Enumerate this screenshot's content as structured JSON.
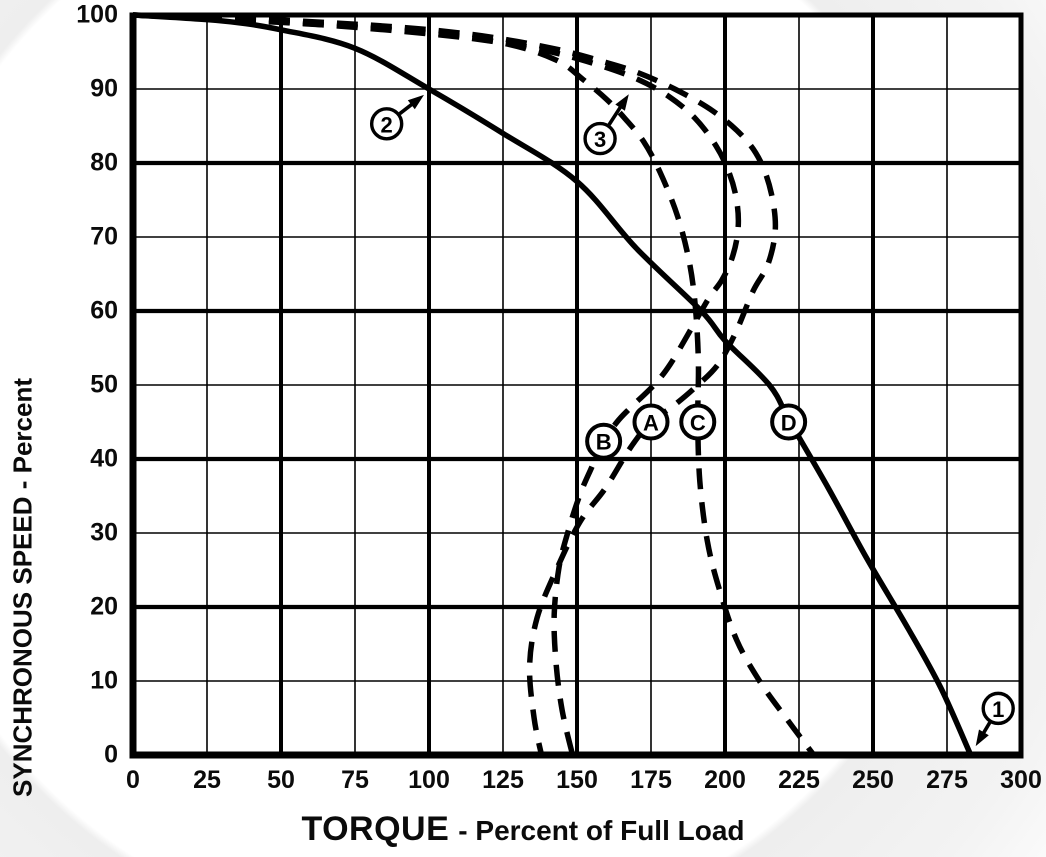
{
  "page": {
    "background_color": "#ffffff",
    "watermark_color": "#eeeeee"
  },
  "chart_data": {
    "type": "line",
    "title": "",
    "xlabel": "TORQUE - Percent of Full Load",
    "xlabel_primary": "TORQUE",
    "xlabel_secondary": "- Percent of Full Load",
    "ylabel": "SYNCHRONOUS SPEED - Percent",
    "xlim": [
      0,
      300
    ],
    "ylim": [
      0,
      100
    ],
    "x_ticks": [
      0,
      25,
      50,
      75,
      100,
      125,
      150,
      175,
      200,
      225,
      250,
      275,
      300
    ],
    "y_ticks": [
      0,
      10,
      20,
      30,
      40,
      50,
      60,
      70,
      80,
      90,
      100
    ],
    "x_major_step": 50,
    "y_major_step": 20,
    "grid": true,
    "legend_position": "none",
    "line_color": "#000000",
    "dash_pattern": [
      21,
      13
    ],
    "series": [
      {
        "name": "A",
        "style": "dashed",
        "label": {
          "text": "A",
          "x": 175,
          "y": 45
        },
        "points": [
          [
            0,
            100
          ],
          [
            45,
            99.4
          ],
          [
            85,
            98.5
          ],
          [
            112,
            97.5
          ],
          [
            130,
            96.4
          ],
          [
            145,
            95.2
          ],
          [
            158,
            93.8
          ],
          [
            170,
            92.3
          ],
          [
            183,
            90
          ],
          [
            196,
            87
          ],
          [
            206,
            83.6
          ],
          [
            212,
            80.2
          ],
          [
            215.7,
            75.8
          ],
          [
            217,
            71
          ],
          [
            214.5,
            66.3
          ],
          [
            209.5,
            62.7
          ],
          [
            203.5,
            57
          ],
          [
            197.5,
            52.7
          ],
          [
            190,
            49.7
          ],
          [
            182,
            47
          ],
          [
            175,
            45
          ],
          [
            168,
            41.5
          ],
          [
            159.5,
            36
          ],
          [
            151,
            31.5
          ],
          [
            143,
            25
          ],
          [
            136.5,
            18.5
          ],
          [
            134,
            12
          ],
          [
            135.5,
            5
          ],
          [
            138,
            0
          ]
        ]
      },
      {
        "name": "B",
        "style": "dashed",
        "label": {
          "text": "B",
          "x": 159,
          "y": 42.4
        },
        "points": [
          [
            0,
            100
          ],
          [
            45,
            99.2
          ],
          [
            85,
            98
          ],
          [
            115,
            96.8
          ],
          [
            138,
            95.3
          ],
          [
            156,
            93.4
          ],
          [
            170,
            91.4
          ],
          [
            181,
            89
          ],
          [
            190,
            86
          ],
          [
            197,
            82.3
          ],
          [
            201.5,
            78.6
          ],
          [
            204,
            74.8
          ],
          [
            204.4,
            71
          ],
          [
            202.5,
            67.3
          ],
          [
            199,
            64.2
          ],
          [
            194.5,
            61.7
          ],
          [
            188,
            57.2
          ],
          [
            181.5,
            52.8
          ],
          [
            176,
            50
          ],
          [
            168,
            46.9
          ],
          [
            163.5,
            45
          ],
          [
            159,
            42.4
          ],
          [
            155,
            38.9
          ],
          [
            151,
            35.2
          ],
          [
            147.2,
            30.5
          ],
          [
            144,
            25.5
          ],
          [
            142.3,
            19
          ],
          [
            142.9,
            12.5
          ],
          [
            145,
            6
          ],
          [
            148.5,
            0
          ]
        ]
      },
      {
        "name": "C",
        "style": "dashed",
        "label": {
          "text": "C",
          "x": 190.8,
          "y": 45
        },
        "points": [
          [
            0,
            100
          ],
          [
            50,
            99
          ],
          [
            95,
            97.8
          ],
          [
            125,
            96.2
          ],
          [
            143,
            93.9
          ],
          [
            152,
            91.3
          ],
          [
            160,
            88.6
          ],
          [
            166,
            86.1
          ],
          [
            172.5,
            82.9
          ],
          [
            178,
            78.8
          ],
          [
            184,
            72.8
          ],
          [
            188,
            66.5
          ],
          [
            190,
            60.5
          ],
          [
            191,
            53
          ],
          [
            190.8,
            45
          ],
          [
            191.5,
            37
          ],
          [
            194,
            29
          ],
          [
            198,
            22.5
          ],
          [
            204,
            15.5
          ],
          [
            212,
            9.8
          ],
          [
            221,
            4.8
          ],
          [
            230,
            0
          ]
        ]
      },
      {
        "name": "D",
        "style": "solid",
        "label": {
          "text": "D",
          "x": 221.5,
          "y": 45
        },
        "points": [
          [
            0,
            100
          ],
          [
            30,
            99.2
          ],
          [
            50,
            98
          ],
          [
            75,
            95.5
          ],
          [
            100,
            90
          ],
          [
            125,
            84
          ],
          [
            150,
            77.5
          ],
          [
            170,
            68.5
          ],
          [
            192,
            60
          ],
          [
            200,
            56
          ],
          [
            215,
            50
          ],
          [
            222,
            45
          ],
          [
            235,
            36
          ],
          [
            248,
            26.5
          ],
          [
            262,
            17
          ],
          [
            273,
            9
          ],
          [
            283,
            0
          ]
        ]
      }
    ],
    "callouts": [
      {
        "label": "1",
        "circle_x": 292.3,
        "circle_y": 6.3,
        "tip_x": 284.7,
        "tip_y": 1.2
      },
      {
        "label": "2",
        "circle_x": 85.7,
        "circle_y": 85.3,
        "tip_x": 98.3,
        "tip_y": 89.2
      },
      {
        "label": "3",
        "circle_x": 157.8,
        "circle_y": 83.3,
        "tip_x": 167.5,
        "tip_y": 89.3
      }
    ]
  }
}
